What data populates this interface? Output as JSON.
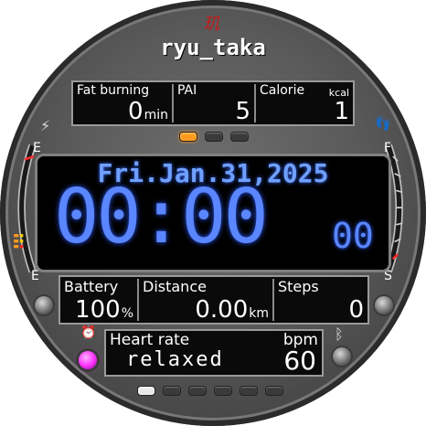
{
  "watch": {
    "logo_glyph": "玑",
    "brand": "ryu_taka",
    "top": {
      "fat_burning_label": "Fat burning",
      "fat_burning_value": "0",
      "fat_burning_unit": "min",
      "pai_label": "PAI",
      "pai_value": "5",
      "calorie_label": "Calorie",
      "calorie_unit": "kcal",
      "calorie_value": "1"
    },
    "date": "Fri.Jan.31,2025",
    "time": "00:00",
    "seconds": "00",
    "left_gauge": {
      "top_mark": "E",
      "bottom_mark": "E",
      "icon": "lightning-icon",
      "level": 0.25
    },
    "right_gauge": {
      "top_mark": "F",
      "bottom_mark": "S",
      "icon": "footprints-icon"
    },
    "mid": {
      "battery_label": "Battery",
      "battery_value": "100",
      "battery_unit": "%",
      "distance_label": "Distance",
      "distance_value": "0.00",
      "distance_unit": "km",
      "steps_label": "Steps",
      "steps_value": "0"
    },
    "heart": {
      "label": "Heart rate",
      "unit": "bpm",
      "status": "relaxed",
      "value": "60"
    },
    "colors": {
      "accent_orange": "#ff9a1e",
      "lcd_blue": "#5a86ff",
      "magenta": "#ff37ff"
    }
  }
}
